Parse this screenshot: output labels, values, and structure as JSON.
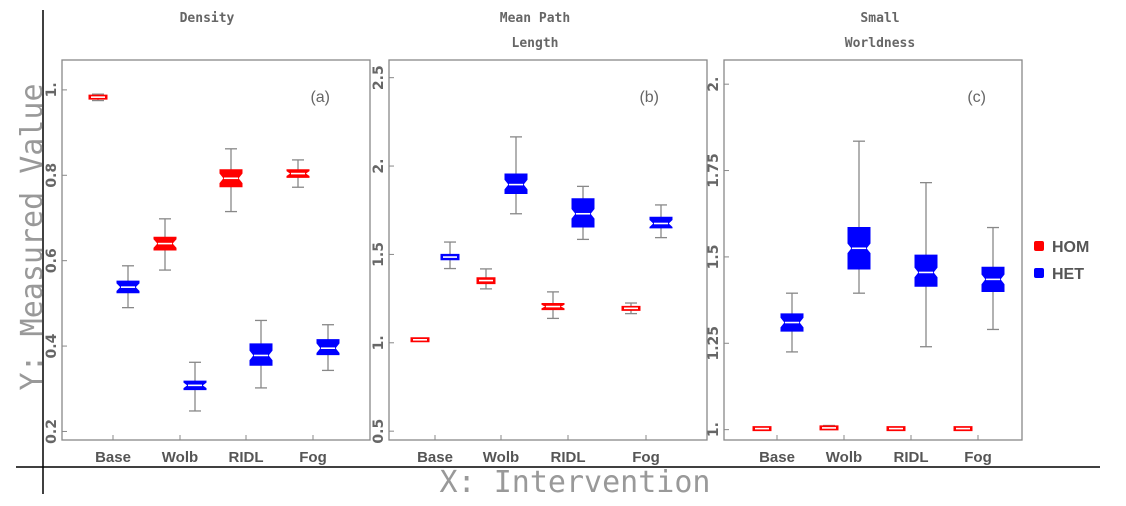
{
  "chart_data": {
    "type": "box",
    "xlabel": "X: Intervention",
    "ylabel": "Y: Measured Value",
    "categories": [
      "Base",
      "Wolb",
      "RIDL",
      "Fog"
    ],
    "legend": {
      "placement": "right",
      "entries": [
        {
          "name": "HOM",
          "color": "#ff0000"
        },
        {
          "name": "HET",
          "color": "#0000ff"
        }
      ]
    },
    "panels": [
      {
        "title": "Density",
        "label": "(a)",
        "ylim": [
          0.18,
          1.07
        ],
        "ticks": [
          {
            "v": 0.2,
            "t": "0.2"
          },
          {
            "v": 0.4,
            "t": "0.4"
          },
          {
            "v": 0.6,
            "t": "0.6"
          },
          {
            "v": 0.8,
            "t": "0.8"
          },
          {
            "v": 1.0,
            "t": "1."
          }
        ],
        "boxes": [
          {
            "cat": "Base",
            "group": "HOM",
            "min": 0.975,
            "q1": 0.98,
            "median": 0.983,
            "q3": 0.986,
            "max": 0.99
          },
          {
            "cat": "Base",
            "group": "HET",
            "min": 0.49,
            "q1": 0.525,
            "median": 0.538,
            "q3": 0.552,
            "max": 0.588
          },
          {
            "cat": "Wolb",
            "group": "HOM",
            "min": 0.578,
            "q1": 0.625,
            "median": 0.64,
            "q3": 0.655,
            "max": 0.698
          },
          {
            "cat": "Wolb",
            "group": "HET",
            "min": 0.248,
            "q1": 0.298,
            "median": 0.308,
            "q3": 0.318,
            "max": 0.362
          },
          {
            "cat": "RIDL",
            "group": "HOM",
            "min": 0.715,
            "q1": 0.773,
            "median": 0.793,
            "q3": 0.813,
            "max": 0.862
          },
          {
            "cat": "RIDL",
            "group": "HET",
            "min": 0.302,
            "q1": 0.355,
            "median": 0.378,
            "q3": 0.405,
            "max": 0.46
          },
          {
            "cat": "Fog",
            "group": "HOM",
            "min": 0.772,
            "q1": 0.795,
            "median": 0.804,
            "q3": 0.813,
            "max": 0.836
          },
          {
            "cat": "Fog",
            "group": "HET",
            "min": 0.343,
            "q1": 0.38,
            "median": 0.395,
            "q3": 0.415,
            "max": 0.45
          }
        ]
      },
      {
        "title": "Mean Path Length",
        "label": "(b)",
        "ylim": [
          0.45,
          2.6
        ],
        "ticks": [
          {
            "v": 0.5,
            "t": "0.5"
          },
          {
            "v": 1.0,
            "t": "1."
          },
          {
            "v": 1.5,
            "t": "1.5"
          },
          {
            "v": 2.0,
            "t": "2."
          },
          {
            "v": 2.5,
            "t": "2.5"
          }
        ],
        "boxes": [
          {
            "cat": "Base",
            "group": "HOM",
            "min": 1.013,
            "q1": 1.015,
            "median": 1.017,
            "q3": 1.02,
            "max": 1.022
          },
          {
            "cat": "Base",
            "group": "HET",
            "min": 1.42,
            "q1": 1.47,
            "median": 1.485,
            "q3": 1.5,
            "max": 1.57
          },
          {
            "cat": "Wolb",
            "group": "HOM",
            "min": 1.305,
            "q1": 1.335,
            "median": 1.352,
            "q3": 1.368,
            "max": 1.418
          },
          {
            "cat": "Wolb",
            "group": "HET",
            "min": 1.73,
            "q1": 1.845,
            "median": 1.895,
            "q3": 1.955,
            "max": 2.165
          },
          {
            "cat": "RIDL",
            "group": "HOM",
            "min": 1.138,
            "q1": 1.188,
            "median": 1.205,
            "q3": 1.222,
            "max": 1.288
          },
          {
            "cat": "RIDL",
            "group": "HET",
            "min": 1.585,
            "q1": 1.655,
            "median": 1.73,
            "q3": 1.815,
            "max": 1.885
          },
          {
            "cat": "Fog",
            "group": "HOM",
            "min": 1.165,
            "q1": 1.185,
            "median": 1.195,
            "q3": 1.205,
            "max": 1.225
          },
          {
            "cat": "Fog",
            "group": "HET",
            "min": 1.595,
            "q1": 1.65,
            "median": 1.675,
            "q3": 1.71,
            "max": 1.78
          }
        ]
      },
      {
        "title": "Small Worldness",
        "label": "(c)",
        "ylim": [
          0.97,
          2.07
        ],
        "ticks": [
          {
            "v": 1.0,
            "t": "1."
          },
          {
            "v": 1.25,
            "t": "1.25"
          },
          {
            "v": 1.5,
            "t": "1.5"
          },
          {
            "v": 1.75,
            "t": "1.75"
          },
          {
            "v": 2.0,
            "t": "2."
          }
        ],
        "boxes": [
          {
            "cat": "Base",
            "group": "HOM",
            "min": 1.002,
            "q1": 1.003,
            "median": 1.003,
            "q3": 1.004,
            "max": 1.004
          },
          {
            "cat": "Base",
            "group": "HET",
            "min": 1.225,
            "q1": 1.285,
            "median": 1.31,
            "q3": 1.335,
            "max": 1.395
          },
          {
            "cat": "Wolb",
            "group": "HOM",
            "min": 1.001,
            "q1": 1.003,
            "median": 1.005,
            "q3": 1.008,
            "max": 1.012
          },
          {
            "cat": "Wolb",
            "group": "HET",
            "min": 1.395,
            "q1": 1.465,
            "median": 1.525,
            "q3": 1.585,
            "max": 1.835
          },
          {
            "cat": "RIDL",
            "group": "HOM",
            "min": 1.002,
            "q1": 1.003,
            "median": 1.003,
            "q3": 1.004,
            "max": 1.004
          },
          {
            "cat": "RIDL",
            "group": "HET",
            "min": 1.24,
            "q1": 1.415,
            "median": 1.455,
            "q3": 1.505,
            "max": 1.715
          },
          {
            "cat": "Fog",
            "group": "HOM",
            "min": 1.002,
            "q1": 1.003,
            "median": 1.003,
            "q3": 1.004,
            "max": 1.004
          },
          {
            "cat": "Fog",
            "group": "HET",
            "min": 1.29,
            "q1": 1.4,
            "median": 1.435,
            "q3": 1.47,
            "max": 1.585
          }
        ]
      }
    ]
  }
}
